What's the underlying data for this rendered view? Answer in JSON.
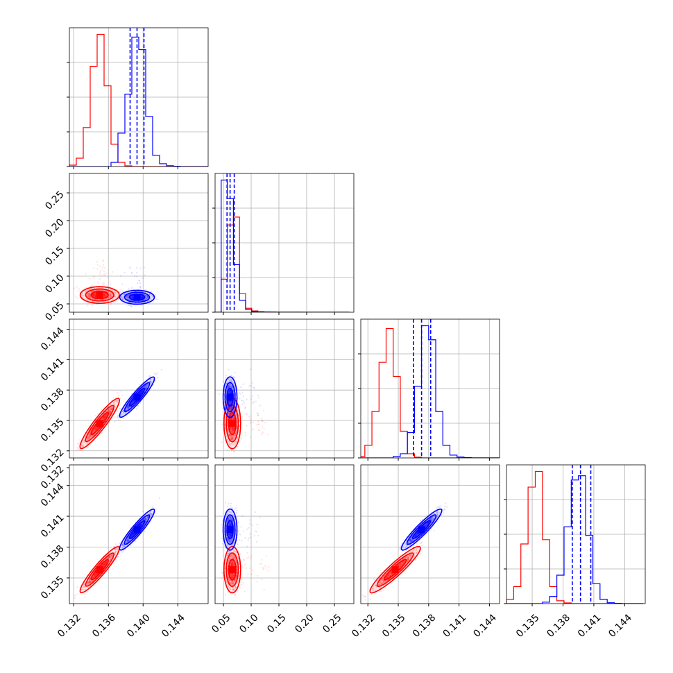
{
  "colors": {
    "red": "#ff0000",
    "blue": "#0000ff",
    "grid": "#b0b0b0",
    "axis": "#000000"
  },
  "chart_data": {
    "type": "corner",
    "grid": true,
    "series": [
      {
        "name": "",
        "color": "#ff0000",
        "mean": [
          0.135,
          0.066,
          0.1347,
          0.1358
        ],
        "sd": [
          0.0009,
          0.006,
          0.001,
          0.0009
        ],
        "corr": [
          [
            1,
            0.0,
            0.93,
            0.93
          ],
          [
            0.0,
            1,
            0.0,
            0.0
          ],
          [
            0.93,
            0.0,
            1,
            0.93
          ],
          [
            0.93,
            0.0,
            0.93,
            1
          ]
        ],
        "quantiles": []
      },
      {
        "name": "",
        "color": "#0000ff",
        "mean": [
          0.1393,
          0.062,
          0.1373,
          0.1397
        ],
        "sd": [
          0.0008,
          0.005,
          0.0008,
          0.0008
        ],
        "corr": [
          [
            1,
            0.0,
            0.93,
            0.93
          ],
          [
            0.0,
            1,
            0.0,
            0.0
          ],
          [
            0.93,
            0.0,
            1,
            0.93
          ],
          [
            0.93,
            0.0,
            0.93,
            1
          ]
        ],
        "quantiles": [
          [
            0.1385,
            0.1393,
            0.1401
          ],
          [
            0.0565,
            0.062,
            0.0695
          ],
          [
            0.1365,
            0.1373,
            0.1382
          ],
          [
            0.1389,
            0.1397,
            0.1407
          ]
        ]
      }
    ],
    "histograms": [
      {
        "bins": [
          0.1315,
          0.1323,
          0.1331,
          0.1339,
          0.1347,
          0.1355,
          0.1363,
          0.1371,
          0.1379,
          0.1387,
          0.1395,
          0.1403,
          0.1411,
          0.1419,
          0.1427,
          0.1435,
          0.1443,
          0.1451,
          0.1459,
          0.1467,
          0.1475
        ],
        "red": [
          1,
          6,
          28,
          72,
          95,
          58,
          16,
          3,
          0.5,
          0,
          0,
          0,
          0,
          0,
          0,
          0,
          0,
          0,
          0,
          0
        ],
        "blue": [
          0,
          0,
          0,
          0,
          0,
          0,
          3,
          24,
          52,
          93,
          84,
          36,
          8,
          2,
          0.6,
          0.2,
          0,
          0,
          0,
          0
        ]
      },
      {
        "bins": [
          0.035,
          0.046,
          0.057,
          0.068,
          0.079,
          0.09,
          0.101,
          0.112,
          0.123,
          0.134,
          0.145,
          0.156,
          0.167,
          0.178,
          0.189,
          0.2,
          0.211,
          0.222,
          0.233,
          0.244,
          0.255,
          0.266,
          0.277
        ],
        "red": [
          0,
          25,
          66,
          72,
          14,
          3,
          1,
          0.5,
          0.3,
          0.2,
          0.1,
          0.1,
          0.1,
          0.1,
          0,
          0,
          0,
          0,
          0,
          0,
          0,
          0
        ],
        "blue": [
          0,
          100,
          86,
          36,
          9,
          2,
          0.5,
          0.1,
          0,
          0,
          0,
          0,
          0,
          0,
          0,
          0,
          0,
          0,
          0,
          0,
          0,
          0
        ]
      },
      {
        "bins": [
          0.131,
          0.1317,
          0.1324,
          0.1331,
          0.1338,
          0.1345,
          0.1352,
          0.1359,
          0.1366,
          0.1373,
          0.138,
          0.1387,
          0.1394,
          0.1401,
          0.1408,
          0.1415,
          0.1422,
          0.1429,
          0.1436,
          0.1443,
          0.145
        ],
        "red": [
          1,
          9,
          33,
          68,
          92,
          58,
          19,
          3,
          0.5,
          0,
          0,
          0,
          0,
          0,
          0,
          0,
          0,
          0,
          0,
          0
        ],
        "blue": [
          0,
          0,
          0,
          0,
          0,
          1,
          3,
          18,
          51,
          94,
          84,
          33,
          9,
          2,
          0.6,
          0.2,
          0,
          0,
          0,
          0
        ]
      },
      {
        "bins": [
          0.1325,
          0.1332,
          0.1339,
          0.1346,
          0.1353,
          0.136,
          0.1367,
          0.1374,
          0.1381,
          0.1388,
          0.1395,
          0.1402,
          0.1409,
          0.1416,
          0.1423,
          0.143,
          0.1437,
          0.1444,
          0.1451,
          0.1458
        ],
        "red": [
          3,
          12,
          42,
          82,
          93,
          45,
          12,
          2,
          0.5,
          0,
          0,
          0,
          0,
          0,
          0,
          0,
          0,
          0,
          0
        ],
        "blue": [
          0,
          0,
          0,
          0,
          0,
          1,
          5,
          20,
          54,
          87,
          90,
          48,
          14,
          3,
          0.6,
          0.2,
          0,
          0,
          0
        ]
      }
    ],
    "axes": [
      {
        "range": [
          0.1315,
          0.1475
        ],
        "ticks": [
          0.132,
          0.136,
          0.14,
          0.144
        ],
        "tick_labels": [
          "0.132",
          "0.136",
          "0.140",
          "0.144"
        ]
      },
      {
        "range": [
          0.035,
          0.285
        ],
        "ticks": [
          0.05,
          0.1,
          0.15,
          0.2,
          0.25
        ],
        "tick_labels": [
          "0.05",
          "0.10",
          "0.15",
          "0.20",
          "0.25"
        ]
      },
      {
        "range": [
          0.1313,
          0.145
        ],
        "ticks": [
          0.132,
          0.135,
          0.138,
          0.141,
          0.144
        ],
        "tick_labels": [
          "0.132",
          "0.135",
          "0.138",
          "0.141",
          "0.144"
        ]
      },
      {
        "range": [
          0.1325,
          0.146
        ],
        "ticks": [
          0.135,
          0.138,
          0.141,
          0.144
        ],
        "tick_labels": [
          "0.135",
          "0.138",
          "0.141",
          "0.144"
        ]
      }
    ],
    "y_tick_overrides": {
      "3": {
        "ticks": [
          0.132
        ],
        "tick_labels": [
          "0.132"
        ]
      }
    }
  }
}
